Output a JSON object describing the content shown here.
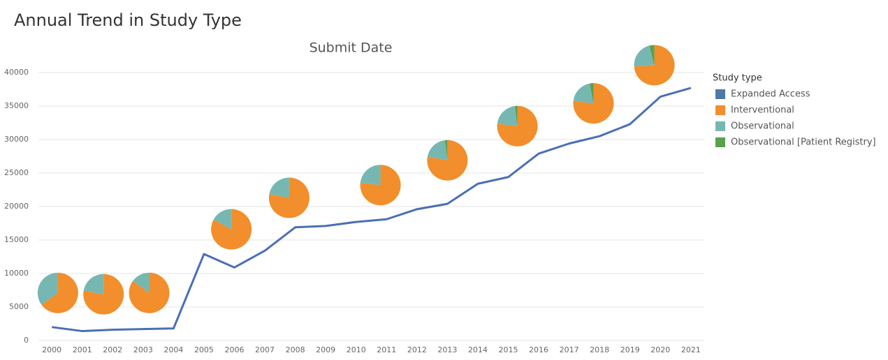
{
  "chart_data": {
    "type": "line",
    "page_title": "Annual Trend in Study Type",
    "title": "Submit Date",
    "x": [
      2000,
      2001,
      2002,
      2003,
      2004,
      2005,
      2006,
      2007,
      2008,
      2009,
      2010,
      2011,
      2012,
      2013,
      2014,
      2015,
      2016,
      2017,
      2018,
      2019,
      2020,
      2021
    ],
    "values": [
      2000,
      1400,
      1600,
      1700,
      1800,
      12900,
      10900,
      13400,
      16900,
      17100,
      17700,
      18100,
      19600,
      20400,
      23400,
      24400,
      27900,
      29400,
      30500,
      32300,
      36400,
      37700
    ],
    "color": "#4a6fb5",
    "xlim": [
      1999.56,
      2021.44
    ],
    "xticks": [
      2000,
      2001,
      2002,
      2003,
      2004,
      2005,
      2006,
      2007,
      2008,
      2009,
      2010,
      2011,
      2012,
      2013,
      2014,
      2015,
      2016,
      2017,
      2018,
      2019,
      2020,
      2021
    ],
    "ylim": [
      0,
      40000
    ],
    "yticks": [
      0,
      5000,
      10000,
      15000,
      20000,
      25000,
      30000,
      35000,
      40000
    ],
    "grid": true,
    "legend_title": "Study type",
    "pie_series": [
      {
        "name": "Expanded Access",
        "color": "#4e79a7"
      },
      {
        "name": "Interventional",
        "color": "#f28e2b"
      },
      {
        "name": "Observational",
        "color": "#76b7b2"
      },
      {
        "name": "Observational [Patient Registry]",
        "color": "#59a14f"
      }
    ],
    "pies": [
      {
        "x": 2000.2,
        "y": 7100,
        "values": [
          0,
          65,
          35,
          0
        ]
      },
      {
        "x": 2001.7,
        "y": 6900,
        "values": [
          0,
          78,
          22,
          0
        ]
      },
      {
        "x": 2003.2,
        "y": 7100,
        "values": [
          0,
          85,
          15,
          0
        ]
      },
      {
        "x": 2005.9,
        "y": 16600,
        "values": [
          0,
          83,
          17,
          0
        ]
      },
      {
        "x": 2007.8,
        "y": 21300,
        "values": [
          0,
          78,
          22,
          0
        ]
      },
      {
        "x": 2010.8,
        "y": 23200,
        "values": [
          0,
          77,
          23,
          0
        ]
      },
      {
        "x": 2013.0,
        "y": 26900,
        "values": [
          0,
          78,
          20,
          2
        ]
      },
      {
        "x": 2015.3,
        "y": 32000,
        "values": [
          0,
          77,
          21,
          2
        ]
      },
      {
        "x": 2017.8,
        "y": 35400,
        "values": [
          0,
          77,
          20,
          3
        ]
      },
      {
        "x": 2019.8,
        "y": 41100,
        "values": [
          0,
          74,
          22,
          4
        ]
      }
    ]
  }
}
